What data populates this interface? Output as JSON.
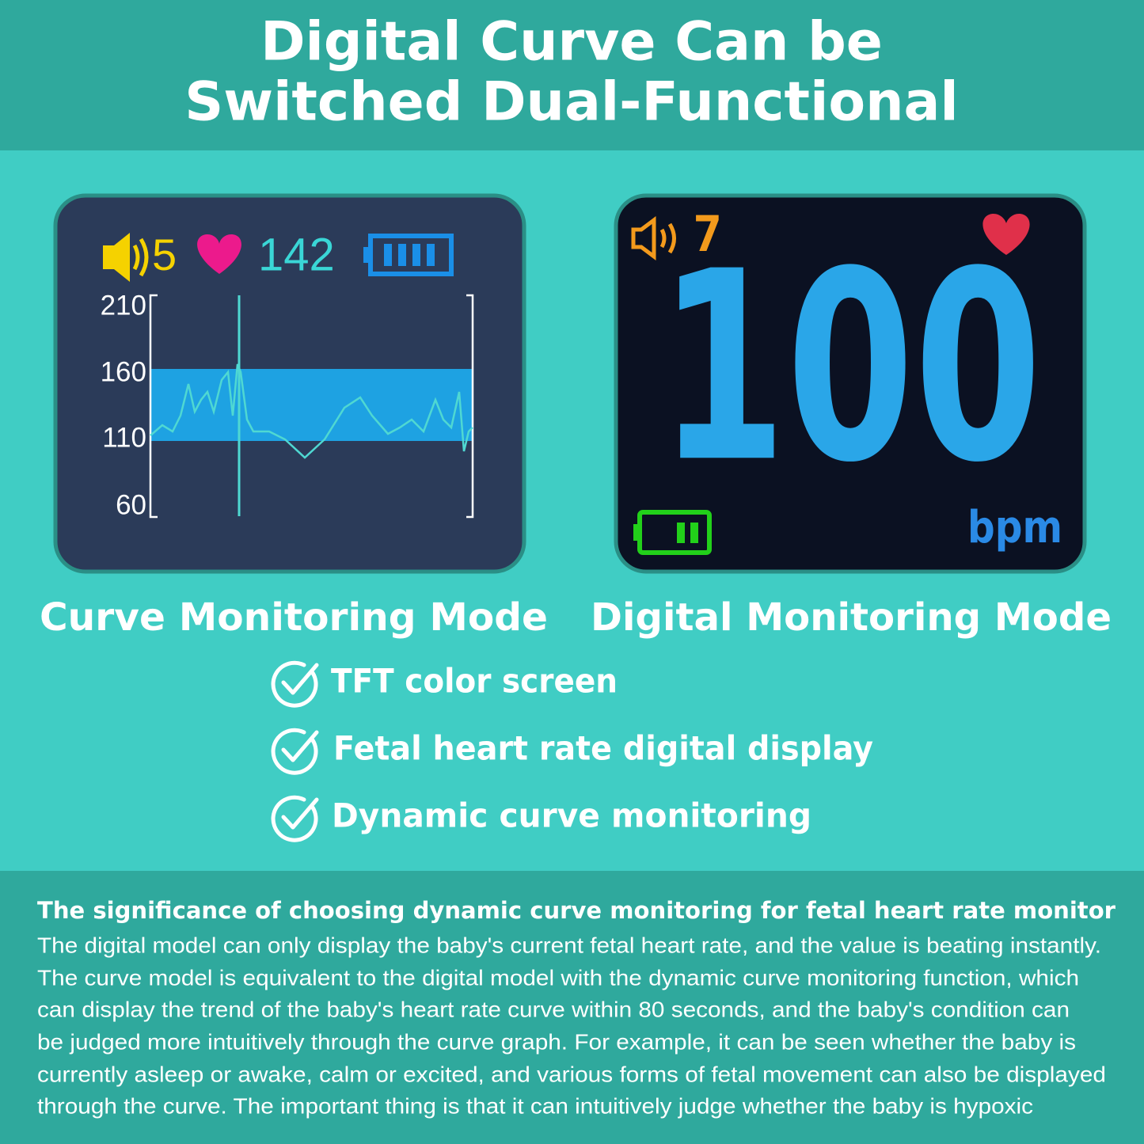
{
  "header": {
    "title_lines": [
      "Digital Curve Can be",
      "Switched Dual-Functional"
    ]
  },
  "curve_screen": {
    "volume": 5,
    "heart_rate": 142,
    "y_axis": [
      210,
      160,
      110,
      60
    ]
  },
  "digital_screen": {
    "volume": 7,
    "heart_rate": 100,
    "unit": "bpm"
  },
  "modes": [
    "Curve Monitoring Mode",
    "Digital Monitoring Mode"
  ],
  "features": [
    "TFT color screen",
    "Fetal heart rate digital display",
    "Dynamic curve monitoring"
  ],
  "description": {
    "heading": "The significance of choosing dynamic curve monitoring for fetal heart rate monitor",
    "lines": [
      "The digital model can only display the baby's current fetal heart rate, and the value is beating instantly.",
      "The curve model is equivalent to the digital model with the dynamic curve monitoring function, which",
      "can display the trend of the baby's heart rate curve within 80 seconds, and the baby's condition can",
      "be judged more intuitively through the curve graph. For example, it can be seen whether the baby is",
      "currently asleep or awake, calm or excited, and various forms of fetal movement can also be displayed",
      "through the curve. The important thing is that it can intuitively judge whether the baby is hypoxic"
    ]
  }
}
